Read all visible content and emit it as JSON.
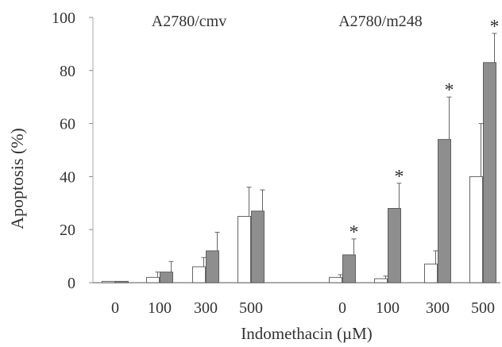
{
  "chart_data": {
    "type": "bar",
    "ylabel": "Apoptosis (%)",
    "xlabel": "Indomethacin (µM)",
    "ylim": [
      0,
      100
    ],
    "yticks": [
      0,
      20,
      40,
      60,
      80,
      100
    ],
    "grid": false,
    "legend": "none",
    "significance_marker": "*",
    "groups": [
      {
        "name": "A2780/cmv",
        "categories": [
          "0",
          "100",
          "300",
          "500"
        ],
        "series": [
          {
            "style": "open",
            "values": [
              0.5,
              2,
              6,
              25
            ],
            "errors": [
              0,
              2,
              3.5,
              11
            ],
            "significant": [
              false,
              false,
              false,
              false
            ]
          },
          {
            "style": "filled",
            "values": [
              0.5,
              4,
              12,
              27
            ],
            "errors": [
              0,
              4,
              7,
              8
            ],
            "significant": [
              false,
              false,
              false,
              false
            ]
          }
        ]
      },
      {
        "name": "A2780/m248",
        "categories": [
          "0",
          "100",
          "300",
          "500"
        ],
        "series": [
          {
            "style": "open",
            "values": [
              2,
              1.5,
              7,
              40
            ],
            "errors": [
              1,
              1,
              5,
              20
            ],
            "significant": [
              false,
              false,
              false,
              false
            ]
          },
          {
            "style": "filled",
            "values": [
              10.5,
              28,
              54,
              83
            ],
            "errors": [
              6,
              9.5,
              16,
              11
            ],
            "significant": [
              true,
              true,
              true,
              true
            ]
          }
        ]
      }
    ],
    "colors": {
      "open": "#ffffff",
      "filled": "#8e8e8e",
      "stroke": "#555555",
      "text": "#333333"
    }
  }
}
